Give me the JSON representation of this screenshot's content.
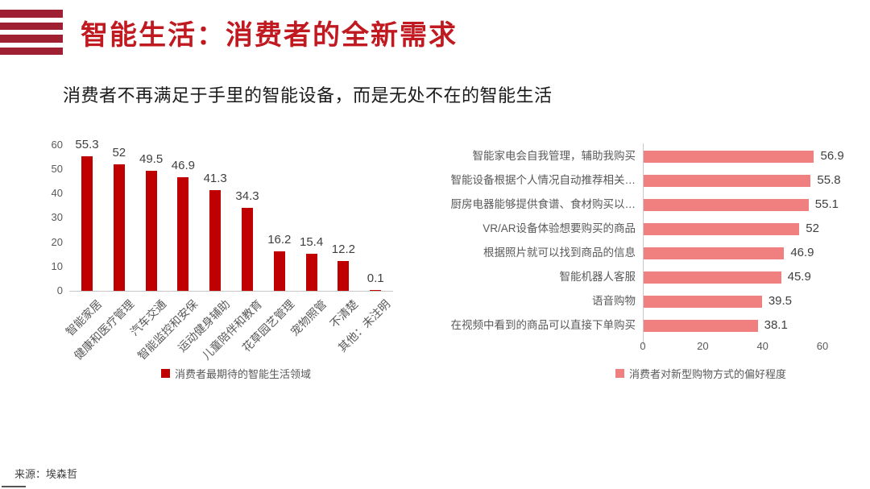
{
  "slide": {
    "title": "智能生活：消费者的全新需求",
    "subtitle": "消费者不再满足于手里的智能设备，而是无处不在的智能生活",
    "source": "来源：埃森哲"
  },
  "colors": {
    "title_red": "#c01920",
    "logo_red": "#9f1f33",
    "bar_dark_red": "#c00000",
    "bar_pink": "#f08080",
    "axis_text": "#595959",
    "value_text": "#404040",
    "axis_line": "#c9c9c9"
  },
  "chart_data": [
    {
      "type": "bar",
      "orientation": "vertical",
      "title": "",
      "xlabel": "",
      "ylabel": "",
      "categories": [
        "智能家居",
        "健康和医疗管理",
        "汽车交通",
        "智能监控和安保",
        "运动健身辅助",
        "儿童陪伴和教育",
        "花草园艺管理",
        "宠物照管",
        "不清楚",
        "其他：未注明"
      ],
      "values": [
        55.3,
        52,
        49.5,
        46.9,
        41.3,
        34.3,
        16.2,
        15.4,
        12.2,
        0.1
      ],
      "ylim": [
        0,
        60
      ],
      "yticks": [
        0,
        10,
        20,
        30,
        40,
        50,
        60
      ],
      "grid": false,
      "legend": "消费者最期待的智能生活领域",
      "legend_position": "bottom",
      "bar_color": "#c00000"
    },
    {
      "type": "bar",
      "orientation": "horizontal",
      "title": "",
      "xlabel": "",
      "ylabel": "",
      "categories": [
        "智能家电会自我管理，辅助我购买",
        "智能设备根据个人情况自动推荐相关…",
        "厨房电器能够提供食谱、食材购买以…",
        "VR/AR设备体验想要购买的商品",
        "根据照片就可以找到商品的信息",
        "智能机器人客服",
        "语音购物",
        "在视频中看到的商品可以直接下单购买"
      ],
      "values": [
        56.9,
        55.8,
        55.1,
        52,
        46.9,
        45.9,
        39.5,
        38.1
      ],
      "xlim": [
        0,
        60
      ],
      "xticks": [
        0,
        20,
        40,
        60
      ],
      "grid": false,
      "legend": "消费者对新型购物方式的偏好程度",
      "legend_position": "bottom",
      "bar_color": "#f08080"
    }
  ]
}
